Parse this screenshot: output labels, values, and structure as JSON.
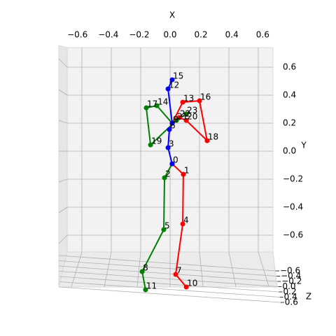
{
  "chart_data": {
    "type": "skeleton3d",
    "x_label": "X",
    "y_label": "Y",
    "z_label": "Z",
    "xlim": [
      -0.7,
      0.7
    ],
    "ylim": [
      -0.72,
      0.74
    ],
    "xticks": [
      {
        "value": -0.6,
        "label": "−0.6"
      },
      {
        "value": -0.4,
        "label": "−0.4"
      },
      {
        "value": -0.2,
        "label": "−0.2"
      },
      {
        "value": 0.0,
        "label": "0.0"
      },
      0.2,
      0.4,
      0.6
    ],
    "yticks": [
      {
        "value": -0.6,
        "label": "−0.6"
      },
      {
        "value": -0.4,
        "label": "−0.4"
      },
      {
        "value": -0.2,
        "label": "−0.2"
      },
      {
        "value": 0.0,
        "label": "0.0"
      },
      0.2,
      0.4,
      0.6
    ],
    "zticks": [
      {
        "value": -0.6,
        "label": "−0.6"
      },
      {
        "value": -0.4,
        "label": "−0.4"
      },
      {
        "value": -0.2,
        "label": "−0.2"
      },
      {
        "value": 0.0,
        "label": "0.0"
      },
      0.2,
      0.4,
      0.6
    ],
    "grid": true,
    "joints": {
      "labels": [
        "0",
        "1",
        "2",
        "3",
        "4",
        "5",
        "6",
        "7",
        "8",
        "9",
        "10",
        "11",
        "12",
        "13",
        "14",
        "15",
        "16",
        "17",
        "18",
        "19",
        "20",
        "21",
        "22",
        "23"
      ],
      "x": [
        0.014,
        0.09,
        -0.038,
        -0.014,
        0.086,
        -0.043,
        -0.005,
        0.038,
        -0.19,
        0.014,
        0.11,
        -0.167,
        -0.014,
        0.086,
        -0.09,
        0.014,
        0.2,
        -0.162,
        0.252,
        -0.133,
        0.11,
        0.043,
        0.062,
        0.11
      ],
      "y": [
        -0.09,
        -0.165,
        -0.19,
        0.025,
        -0.52,
        -0.56,
        0.155,
        -0.88,
        -0.86,
        0.2,
        -0.97,
        -0.99,
        0.445,
        0.35,
        0.325,
        0.51,
        0.36,
        0.31,
        0.075,
        0.045,
        0.22,
        0.22,
        0.24,
        0.265
      ]
    },
    "chains": [
      {
        "color": "#ff0000",
        "joints": [
          0,
          1,
          4,
          7,
          10
        ]
      },
      {
        "color": "#ff0000",
        "joints": [
          9,
          13,
          16,
          18,
          20,
          22
        ]
      },
      {
        "color": "#008000",
        "joints": [
          0,
          2,
          5,
          8,
          11
        ]
      },
      {
        "color": "#008000",
        "joints": [
          9,
          14,
          17,
          19,
          21,
          23
        ]
      },
      {
        "color": "#0000ff",
        "joints": [
          0,
          3,
          6,
          9,
          12,
          15
        ]
      }
    ]
  }
}
